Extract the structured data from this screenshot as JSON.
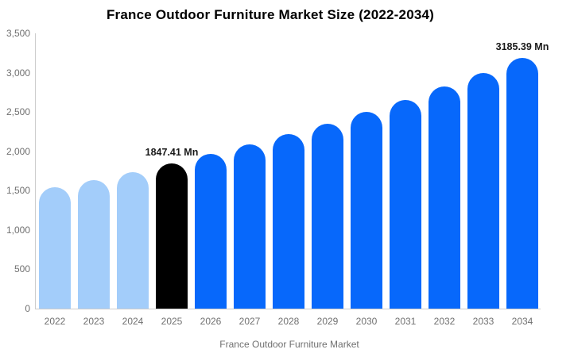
{
  "chart": {
    "title": "France Outdoor Furniture Market Size (2022-2034)"
  },
  "chart_data": {
    "type": "bar",
    "title": "France Outdoor Furniture Market Size (2022-2034)",
    "xlabel": "",
    "ylabel": "",
    "unit": "Mn",
    "categories": [
      "2022",
      "2023",
      "2024",
      "2025",
      "2026",
      "2027",
      "2028",
      "2029",
      "2030",
      "2031",
      "2032",
      "2033",
      "2034"
    ],
    "values": [
      1540,
      1637,
      1739,
      1847.41,
      1963,
      2085,
      2215,
      2354,
      2501,
      2657,
      2823,
      2999,
      3185.39
    ],
    "bar_colors": [
      "#A3CDFA",
      "#A3CDFA",
      "#A3CDFA",
      "#000000",
      "#0768FB",
      "#0768FB",
      "#0768FB",
      "#0768FB",
      "#0768FB",
      "#0768FB",
      "#0768FB",
      "#0768FB",
      "#0768FB"
    ],
    "labeled_points": [
      {
        "category": "2025",
        "text": "1847.41 Mn"
      },
      {
        "category": "2034",
        "text": "3185.39 Mn"
      }
    ],
    "ylim": [
      0,
      3500
    ],
    "ytick_step": 500,
    "yticks": [
      {
        "value": 0,
        "label": "0"
      },
      {
        "value": 500,
        "label": "500"
      },
      {
        "value": 1000,
        "label": "1,000"
      },
      {
        "value": 1500,
        "label": "1,500"
      },
      {
        "value": 2000,
        "label": "2,000"
      },
      {
        "value": 2500,
        "label": "2,500"
      },
      {
        "value": 3000,
        "label": "3,000"
      },
      {
        "value": 3500,
        "label": "3,500"
      }
    ],
    "grid": false,
    "legend": {
      "position": "bottom",
      "label": "France Outdoor Furniture Market",
      "swatch_color": "#A3CDFA"
    },
    "colors": {
      "historical_bar": "#A3CDFA",
      "base_year_bar": "#000000",
      "forecast_bar": "#0768FB",
      "axis_line": "#cccccc",
      "axis_text": "#707070",
      "annotation_text": "#1a1a1a"
    }
  }
}
